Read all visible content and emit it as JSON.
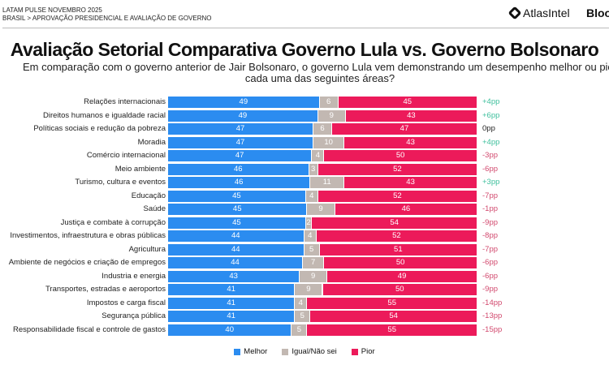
{
  "header": {
    "line1": "LATAM PULSE NOVEMBRO 2025",
    "line2": "BRASIL > APROVAÇÃO PRESIDENCIAL E AVALIAÇÃO DE GOVERNO",
    "brand": "AtlasIntel",
    "partner": "Bloo"
  },
  "chart_data": {
    "type": "bar",
    "stacked": true,
    "orientation": "horizontal",
    "title": "Avaliação Setorial Comparativa Governo Lula vs. Governo Bolsonaro",
    "subtitle": "Em comparação com o governo anterior de Jair Bolsonaro, o governo Lula vem demonstrando um desempenho melhor ou pior cada uma das seguintes áreas?",
    "categories": [
      "Relações internacionais",
      "Direitos humanos e igualdade racial",
      "Políticas sociais e redução da pobreza",
      "Moradia",
      "Comércio internacional",
      "Meio ambiente",
      "Turismo, cultura e eventos",
      "Educação",
      "Saúde",
      "Justiça e combate à corrupção",
      "Investimentos, infraestrutura e obras públicas",
      "Agricultura",
      "Ambiente de negócios e criação de empregos",
      "Industria e energia",
      "Transportes, estradas e aeroportos",
      "Impostos e carga fiscal",
      "Segurança pública",
      "Responsabilidade fiscal e controle de gastos"
    ],
    "series": [
      {
        "name": "Melhor",
        "color": "#2b8cf0",
        "values": [
          49,
          49,
          47,
          47,
          47,
          46,
          46,
          45,
          45,
          45,
          44,
          44,
          44,
          43,
          41,
          41,
          41,
          40
        ]
      },
      {
        "name": "Igual/Não sei",
        "color": "#c2b8b2",
        "values": [
          6,
          9,
          6,
          10,
          4,
          3,
          11,
          4,
          9,
          2,
          4,
          5,
          7,
          9,
          9,
          4,
          5,
          5
        ]
      },
      {
        "name": "Pior",
        "color": "#ec1a5a",
        "values": [
          45,
          43,
          47,
          43,
          50,
          52,
          43,
          52,
          46,
          54,
          52,
          51,
          50,
          49,
          50,
          55,
          54,
          55
        ]
      }
    ],
    "deltas": [
      "+4pp",
      "+6pp",
      "0pp",
      "+4pp",
      "-3pp",
      "-6pp",
      "+3pp",
      "-7pp",
      "-1pp",
      "-9pp",
      "-8pp",
      "-7pp",
      "-6pp",
      "-6pp",
      "-9pp",
      "-14pp",
      "-13pp",
      "-15pp"
    ],
    "delta_colors": {
      "positive": "#3dbf9c",
      "negative": "#d2496e",
      "zero": "#222222"
    },
    "legend": "bottom"
  }
}
